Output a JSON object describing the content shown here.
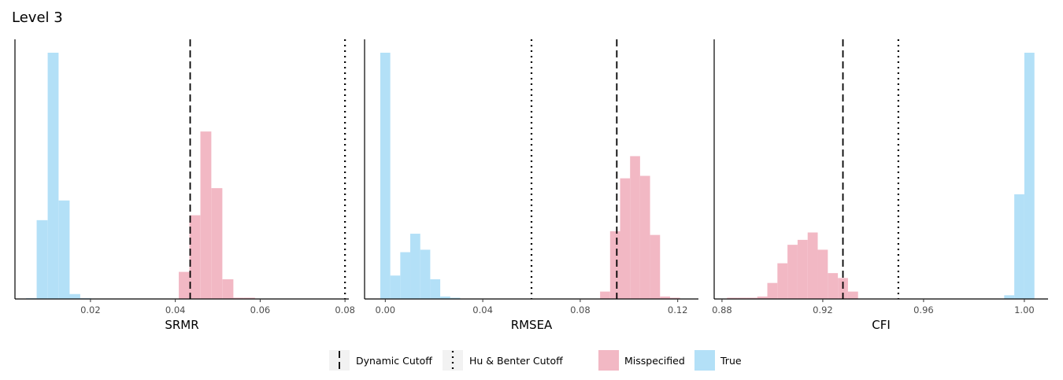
{
  "title": "Level 3",
  "colors": {
    "misspecified": "#F2B8C4",
    "true": "#B3E0F7",
    "axis": "#000000",
    "tick_text": "#4d4d4d",
    "legend_key_bg": "#F2F2F2"
  },
  "legend": {
    "items": [
      {
        "label": "Dynamic Cutoff",
        "kind": "line",
        "style": "dashed"
      },
      {
        "label": "Hu & Benter Cutoff",
        "kind": "line",
        "style": "dotted"
      },
      {
        "label": "Misspecified",
        "kind": "fill",
        "color": "#F2B8C4"
      },
      {
        "label": "True",
        "kind": "fill",
        "color": "#B3E0F7"
      }
    ]
  },
  "chart_data": [
    {
      "type": "histogram",
      "xlabel": "SRMR",
      "xlim": [
        0.0022,
        0.0809
      ],
      "ticks": [
        0.02,
        0.04,
        0.06,
        0.08
      ],
      "tick_labels": [
        "0.02",
        "0.04",
        "0.06",
        "0.08"
      ],
      "ymax": 100,
      "dynamic_cutoff": 0.0435,
      "hu_bentler_cutoff": 0.08,
      "bin_width": 0.00257,
      "series": [
        {
          "name": "True",
          "color": "#B3E0F7",
          "bin_centers": [
            0.0061,
            0.0086,
            0.0112,
            0.0138,
            0.0163,
            0.0189
          ],
          "counts": [
            0.3,
            32,
            100,
            40,
            2,
            0.3
          ]
        },
        {
          "name": "Misspecified",
          "color": "#F2B8C4",
          "bin_centers": [
            0.0421,
            0.0446,
            0.0472,
            0.0498,
            0.0524,
            0.0549,
            0.0575
          ],
          "counts": [
            11,
            34,
            68,
            45,
            8,
            0.5,
            0.5
          ]
        }
      ]
    },
    {
      "type": "histogram",
      "xlabel": "RMSEA",
      "xlim": [
        -0.0085,
        0.1285
      ],
      "ticks": [
        0.0,
        0.04,
        0.08,
        0.12
      ],
      "tick_labels": [
        "0.00",
        "0.04",
        "0.08",
        "0.12"
      ],
      "ymax": 100,
      "dynamic_cutoff": 0.095,
      "hu_bentler_cutoff": 0.06,
      "bin_width": 0.0041,
      "series": [
        {
          "name": "True",
          "color": "#B3E0F7",
          "bin_centers": [
            0.0,
            0.0041,
            0.0082,
            0.0123,
            0.0164,
            0.0205,
            0.0246,
            0.0287
          ],
          "counts": [
            100,
            9.5,
            19,
            26.5,
            20,
            8,
            1,
            0.5
          ]
        },
        {
          "name": "Misspecified",
          "color": "#F2B8C4",
          "bin_centers": [
            0.0902,
            0.0943,
            0.0984,
            0.1025,
            0.1066,
            0.1107,
            0.1148,
            0.1189
          ],
          "counts": [
            3,
            27.5,
            49,
            58,
            50,
            26,
            1,
            0.5
          ]
        }
      ]
    },
    {
      "type": "histogram",
      "xlabel": "CFI",
      "xlim": [
        0.8769,
        1.0094
      ],
      "ticks": [
        0.88,
        0.92,
        0.96,
        1.0
      ],
      "tick_labels": [
        "0.88",
        "0.92",
        "0.96",
        "1.00"
      ],
      "ymax": 100,
      "dynamic_cutoff": 0.928,
      "hu_bentler_cutoff": 0.95,
      "bin_width": 0.004,
      "series": [
        {
          "name": "True",
          "color": "#B3E0F7",
          "bin_centers": [
            0.994,
            0.998,
            1.002
          ],
          "counts": [
            1.5,
            42.5,
            100
          ]
        },
        {
          "name": "Misspecified",
          "color": "#F2B8C4",
          "bin_centers": [
            0.884,
            0.888,
            0.892,
            0.896,
            0.9,
            0.904,
            0.908,
            0.912,
            0.916,
            0.92,
            0.924,
            0.928,
            0.932
          ],
          "counts": [
            0.5,
            0.5,
            0.5,
            1,
            6.5,
            14.5,
            22,
            24,
            27,
            20,
            10.5,
            8.5,
            3
          ]
        }
      ]
    }
  ]
}
